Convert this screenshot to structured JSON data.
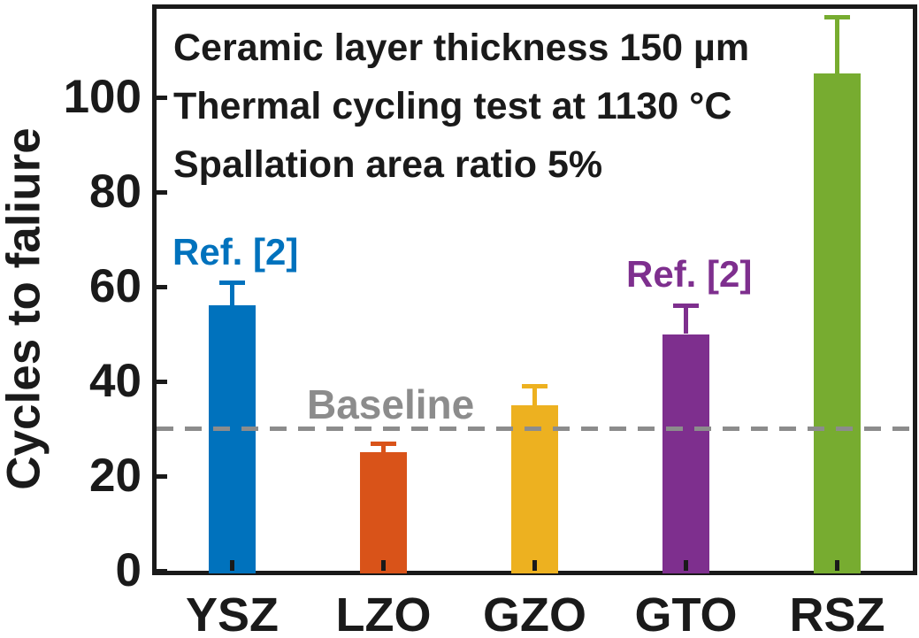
{
  "chart_data": {
    "type": "bar",
    "categories": [
      "YSZ",
      "LZO",
      "GZO",
      "GTO",
      "RSZ"
    ],
    "values": [
      56,
      25,
      35,
      50,
      105
    ],
    "errors_plus": [
      5,
      2,
      4,
      6,
      12
    ],
    "bar_colors": [
      "#0072BD",
      "#D95319",
      "#EDB120",
      "#7E2F8E",
      "#77AC30"
    ],
    "title": "",
    "xlabel": "",
    "ylabel": "Cycles to faliure",
    "yticks": [
      0,
      20,
      40,
      60,
      80,
      100
    ],
    "ylim": [
      0,
      119
    ],
    "grid": "off",
    "legend": "none",
    "baseline": {
      "value": 30,
      "label": "Baseline",
      "color": "#8C8C8C",
      "style": "dashed"
    }
  },
  "annotations": {
    "lines": [
      "Ceramic layer thickness 150 µm",
      "Thermal cycling test at 1130 °C",
      "Spallation area ratio 5%"
    ],
    "ref_ysz": {
      "text": "Ref. [2]",
      "color": "#0072BD"
    },
    "ref_gto": {
      "text": "Ref. [2]",
      "color": "#7E2F8E"
    }
  },
  "colors": {
    "axis": "#1a1a1a",
    "text": "#1a1a1a",
    "background": "#ffffff"
  }
}
